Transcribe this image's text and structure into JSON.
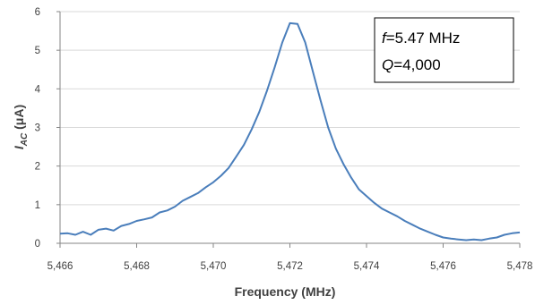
{
  "chart_data": {
    "type": "line",
    "xlabel": "Frequency (MHz)",
    "ylabel_main": "I",
    "ylabel_sub": "AC",
    "ylabel_unit": " (μA)",
    "xlim": [
      5.466,
      5.478
    ],
    "ylim": [
      0,
      6
    ],
    "x_ticks": [
      5.466,
      5.468,
      5.47,
      5.472,
      5.474,
      5.476,
      5.478
    ],
    "x_tick_labels": [
      "5,466",
      "5,468",
      "5,470",
      "5,472",
      "5,474",
      "5,476",
      "5,478"
    ],
    "y_ticks": [
      0,
      1,
      2,
      3,
      4,
      5,
      6
    ],
    "y_tick_labels": [
      "0",
      "1",
      "2",
      "3",
      "4",
      "5",
      "6"
    ],
    "grid": true,
    "annotation": {
      "line1_italic": "f",
      "line1_rest": "=5.47 MHz",
      "line2_italic": "Q",
      "line2_rest": "=4,000"
    },
    "series": [
      {
        "color": "#4a7ebb",
        "x": [
          5.466,
          5.4662,
          5.4664,
          5.4666,
          5.4668,
          5.467,
          5.4672,
          5.4674,
          5.4676,
          5.4678,
          5.468,
          5.4682,
          5.4684,
          5.4686,
          5.4688,
          5.469,
          5.4692,
          5.4694,
          5.4696,
          5.4698,
          5.47,
          5.4702,
          5.4704,
          5.4706,
          5.4708,
          5.471,
          5.4712,
          5.4714,
          5.4716,
          5.4718,
          5.472,
          5.4722,
          5.4724,
          5.4726,
          5.4728,
          5.473,
          5.4732,
          5.4734,
          5.4736,
          5.4738,
          5.474,
          5.4742,
          5.4744,
          5.4746,
          5.4748,
          5.475,
          5.4752,
          5.4754,
          5.4756,
          5.4758,
          5.476,
          5.4762,
          5.4764,
          5.4766,
          5.4768,
          5.477,
          5.4772,
          5.4774,
          5.4776,
          5.4778,
          5.478
        ],
        "y": [
          0.25,
          0.26,
          0.22,
          0.3,
          0.22,
          0.35,
          0.38,
          0.33,
          0.45,
          0.5,
          0.58,
          0.62,
          0.67,
          0.8,
          0.85,
          0.95,
          1.1,
          1.2,
          1.3,
          1.45,
          1.58,
          1.75,
          1.95,
          2.25,
          2.55,
          2.95,
          3.4,
          3.95,
          4.55,
          5.2,
          5.7,
          5.68,
          5.2,
          4.45,
          3.7,
          3.0,
          2.45,
          2.05,
          1.7,
          1.4,
          1.22,
          1.05,
          0.9,
          0.8,
          0.7,
          0.58,
          0.48,
          0.38,
          0.3,
          0.22,
          0.15,
          0.12,
          0.1,
          0.08,
          0.1,
          0.08,
          0.12,
          0.15,
          0.22,
          0.26,
          0.28
        ]
      }
    ]
  }
}
